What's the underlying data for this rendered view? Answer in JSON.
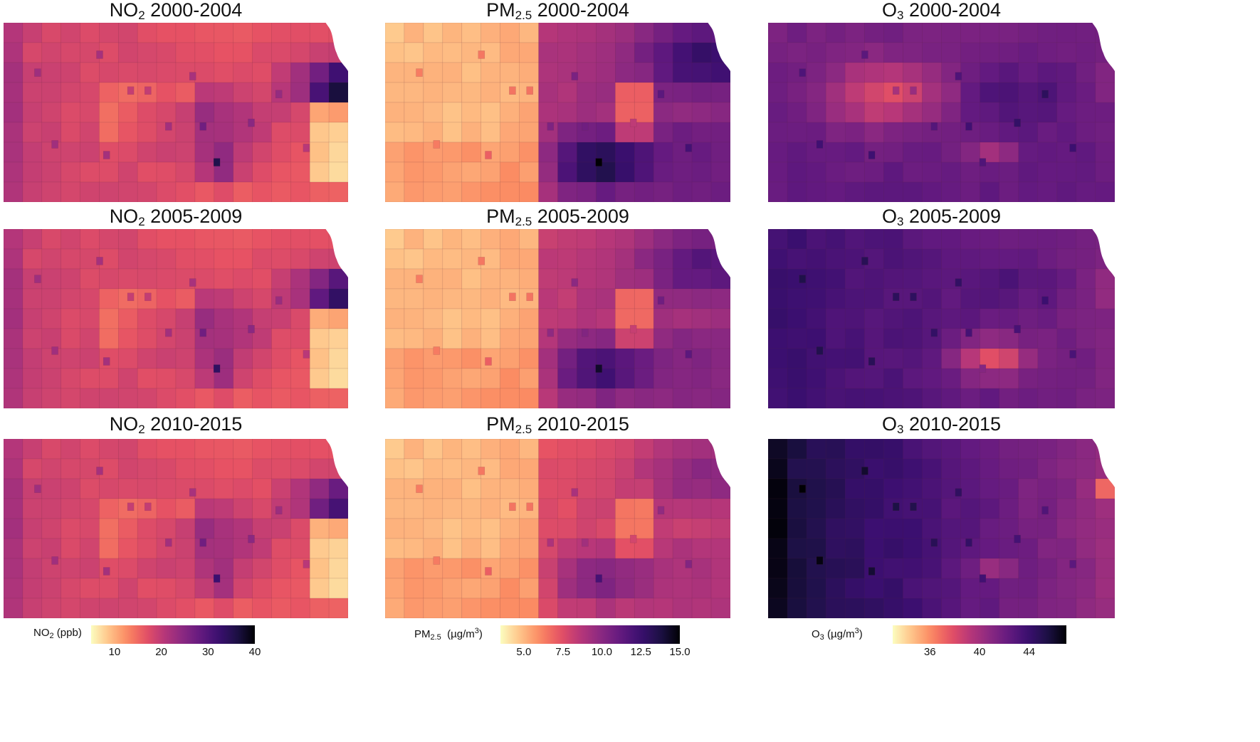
{
  "colors": {
    "magma": [
      "#fcfdbf",
      "#fec287",
      "#fb8861",
      "#e65164",
      "#b73779",
      "#8c2981",
      "#641a80",
      "#3b0f70",
      "#1d1147",
      "#000004"
    ]
  },
  "panels": [
    {
      "id": "no2-2000",
      "pollutant": "no2",
      "main": "NO",
      "sub": "2",
      "period": "2000-2004",
      "pattern": "no2",
      "severity": 1.0
    },
    {
      "id": "pm25-2000",
      "pollutant": "pm25",
      "main": "PM",
      "sub": "2.5",
      "period": "2000-2004",
      "pattern": "pm",
      "severity": 1.0
    },
    {
      "id": "o3-2000",
      "pollutant": "o3",
      "main": "O",
      "sub": "3",
      "period": "2000-2004",
      "pattern": "o3a",
      "severity": 1.0
    },
    {
      "id": "no2-2005",
      "pollutant": "no2",
      "main": "NO",
      "sub": "2",
      "period": "2005-2009",
      "pattern": "no2",
      "severity": 0.85
    },
    {
      "id": "pm25-2005",
      "pollutant": "pm25",
      "main": "PM",
      "sub": "2.5",
      "period": "2005-2009",
      "pattern": "pm",
      "severity": 0.85
    },
    {
      "id": "o3-2005",
      "pollutant": "o3",
      "main": "O",
      "sub": "3",
      "period": "2005-2009",
      "pattern": "o3b",
      "severity": 1.0
    },
    {
      "id": "no2-2010",
      "pollutant": "no2",
      "main": "NO",
      "sub": "2",
      "period": "2010-2015",
      "pattern": "no2",
      "severity": 0.75
    },
    {
      "id": "pm25-2010",
      "pollutant": "pm25",
      "main": "PM",
      "sub": "2.5",
      "period": "2010-2015",
      "pattern": "pm",
      "severity": 0.6
    },
    {
      "id": "o3-2010",
      "pollutant": "o3",
      "main": "O",
      "sub": "3",
      "period": "2010-2015",
      "pattern": "o3c",
      "severity": 1.0
    }
  ],
  "legends": [
    {
      "id": "no2",
      "main": "NO",
      "sub": "2",
      "unit": "(ppb)",
      "sup": "",
      "ticks": [
        "10",
        "20",
        "30",
        "40"
      ],
      "min": 5,
      "max": 40,
      "tick_values": [
        10,
        20,
        30,
        40
      ]
    },
    {
      "id": "pm25",
      "main": "PM",
      "sub": "2.5",
      "unit": "(µg/m",
      "sup": "3",
      "close": ")",
      "ticks": [
        "5.0",
        "7.5",
        "10.0",
        "12.5",
        "15.0"
      ],
      "min": 3.5,
      "max": 15,
      "tick_values": [
        5,
        7.5,
        10,
        12.5,
        15
      ]
    },
    {
      "id": "o3",
      "main": "O",
      "sub": "3",
      "unit": "(µg/m",
      "sup": "3",
      "close": ")",
      "ticks": [
        "36",
        "40",
        "44"
      ],
      "min": 33,
      "max": 47,
      "tick_values": [
        36,
        40,
        44
      ]
    }
  ]
}
